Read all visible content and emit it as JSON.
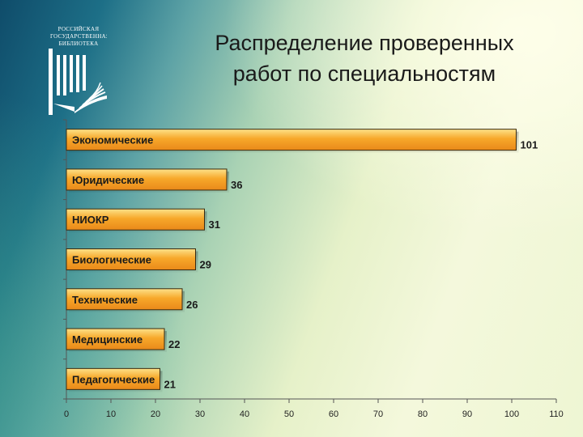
{
  "title": {
    "line1": "Распределение проверенных",
    "line2": "работ по специальностям"
  },
  "logo": {
    "line1": "РОССИЙСКАЯ",
    "line2": "ГОСУДАРСТВЕННАЯ",
    "line3": "БИБЛИОТЕКА"
  },
  "colors": {
    "bar_top": "#fde28a",
    "bar_mid": "#f7a82a",
    "bar_bottom": "#e9891a",
    "bar_stroke": "#3a2a10"
  },
  "chart_data": {
    "type": "bar",
    "orientation": "horizontal",
    "categories": [
      "Экономические",
      "Юридические",
      "НИОКР",
      "Биологические",
      "Технические",
      "Медицинские",
      "Педагогические"
    ],
    "values": [
      101,
      36,
      31,
      29,
      26,
      22,
      21
    ],
    "data_labels": [
      "101",
      "36",
      "31",
      "29",
      "26",
      "22",
      "21"
    ],
    "xlim": [
      0,
      110
    ],
    "x_ticks": [
      "0",
      "10",
      "20",
      "30",
      "40",
      "50",
      "60",
      "70",
      "80",
      "90",
      "100",
      "110"
    ],
    "grid": false,
    "legend": "none"
  }
}
